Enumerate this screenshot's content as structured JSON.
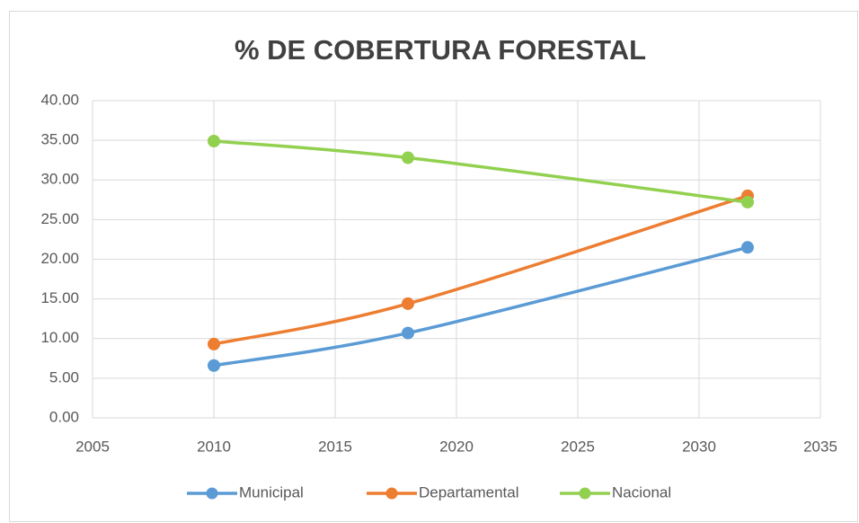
{
  "chart_data": {
    "type": "line",
    "title": "% DE COBERTURA FORESTAL",
    "x": [
      2010,
      2018,
      2032
    ],
    "series": [
      {
        "name": "Municipal",
        "color": "#5b9bd5",
        "values": [
          6.6,
          10.7,
          21.5
        ]
      },
      {
        "name": "Departamental",
        "color": "#ed7d31",
        "values": [
          9.3,
          14.4,
          28.0
        ]
      },
      {
        "name": "Nacional",
        "color": "#92d050",
        "values": [
          34.9,
          32.8,
          27.2
        ]
      }
    ],
    "xlim": [
      2005,
      2035
    ],
    "xticks": [
      2005,
      2010,
      2015,
      2020,
      2025,
      2030,
      2035
    ],
    "ylim": [
      0,
      40
    ],
    "yticks": [
      {
        "value": 0,
        "label": "0.00"
      },
      {
        "value": 5,
        "label": "5.00"
      },
      {
        "value": 10,
        "label": "10.00"
      },
      {
        "value": 15,
        "label": "15.00"
      },
      {
        "value": 20,
        "label": "20.00"
      },
      {
        "value": 25,
        "label": "25.00"
      },
      {
        "value": 30,
        "label": "30.00"
      },
      {
        "value": 35,
        "label": "35.00"
      },
      {
        "value": 40,
        "label": "40.00"
      }
    ],
    "grid": true,
    "legend": "bottom"
  }
}
